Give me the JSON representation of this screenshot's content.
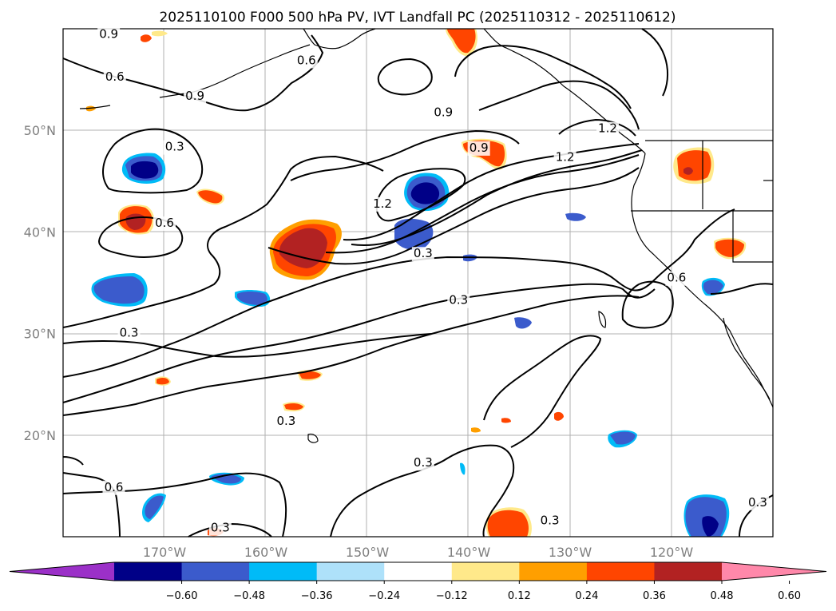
{
  "title": "2025110100 F000 500 hPa PV, IVT Landfall PC (2025110312 - 2025110612)",
  "map": {
    "lat_labels": [
      {
        "lat": 50,
        "text": "50°N"
      },
      {
        "lat": 40,
        "text": "40°N"
      },
      {
        "lat": 30,
        "text": "30°N"
      },
      {
        "lat": 20,
        "text": "20°N"
      }
    ],
    "lon_labels": [
      {
        "lon": -170,
        "text": "170°W"
      },
      {
        "lon": -160,
        "text": "160°W"
      },
      {
        "lon": -150,
        "text": "150°W"
      },
      {
        "lon": -140,
        "text": "140°W"
      },
      {
        "lon": -130,
        "text": "130°W"
      },
      {
        "lon": -120,
        "text": "120°W"
      }
    ],
    "extent": {
      "lon_min": -180,
      "lon_max": -110,
      "lat_min": 10,
      "lat_max": 60
    },
    "contour_labels": [
      {
        "text": "0.9",
        "lon": -175.5,
        "lat": 59.1
      },
      {
        "text": "0.6",
        "lon": -174.9,
        "lat": 54.9
      },
      {
        "text": "0.9",
        "lon": -167.0,
        "lat": 53.0
      },
      {
        "text": "0.3",
        "lon": -169.0,
        "lat": 48.0
      },
      {
        "text": "0.6",
        "lon": -170.0,
        "lat": 40.5
      },
      {
        "text": "0.3",
        "lon": -173.5,
        "lat": 29.7
      },
      {
        "text": "0.6",
        "lon": -175.0,
        "lat": 14.5
      },
      {
        "text": "0.6",
        "lon": -156.0,
        "lat": 56.5
      },
      {
        "text": "0.9",
        "lon": -142.5,
        "lat": 51.4
      },
      {
        "text": "0.9",
        "lon": -139.0,
        "lat": 47.9
      },
      {
        "text": "1.2",
        "lon": -130.5,
        "lat": 47.0
      },
      {
        "text": "1.2",
        "lon": -126.3,
        "lat": 49.8
      },
      {
        "text": "1.2",
        "lon": -148.5,
        "lat": 42.4
      },
      {
        "text": "0.3",
        "lon": -144.5,
        "lat": 37.5
      },
      {
        "text": "0.3",
        "lon": -141.0,
        "lat": 32.9
      },
      {
        "text": "0.6",
        "lon": -119.5,
        "lat": 35.1
      },
      {
        "text": "0.3",
        "lon": -158.0,
        "lat": 21.0
      },
      {
        "text": "0.3",
        "lon": -144.5,
        "lat": 16.9
      },
      {
        "text": "0.3",
        "lon": -132.0,
        "lat": 11.2
      },
      {
        "text": "0.3",
        "lon": -164.5,
        "lat": 10.5
      },
      {
        "text": "0.3",
        "lon": -111.5,
        "lat": 13.0
      }
    ]
  },
  "colorbar": {
    "colors": [
      "#9b30c8",
      "#000087",
      "#3b5bcc",
      "#00bbf7",
      "#aee1fa",
      "#ffffff",
      "#ffe98a",
      "#ff9f00",
      "#ff4500",
      "#b22222",
      "#ff88aa"
    ],
    "ticks": [
      "−0.60",
      "−0.48",
      "−0.36",
      "−0.24",
      "−0.12",
      "0.12",
      "0.24",
      "0.36",
      "0.48",
      "0.60"
    ]
  }
}
